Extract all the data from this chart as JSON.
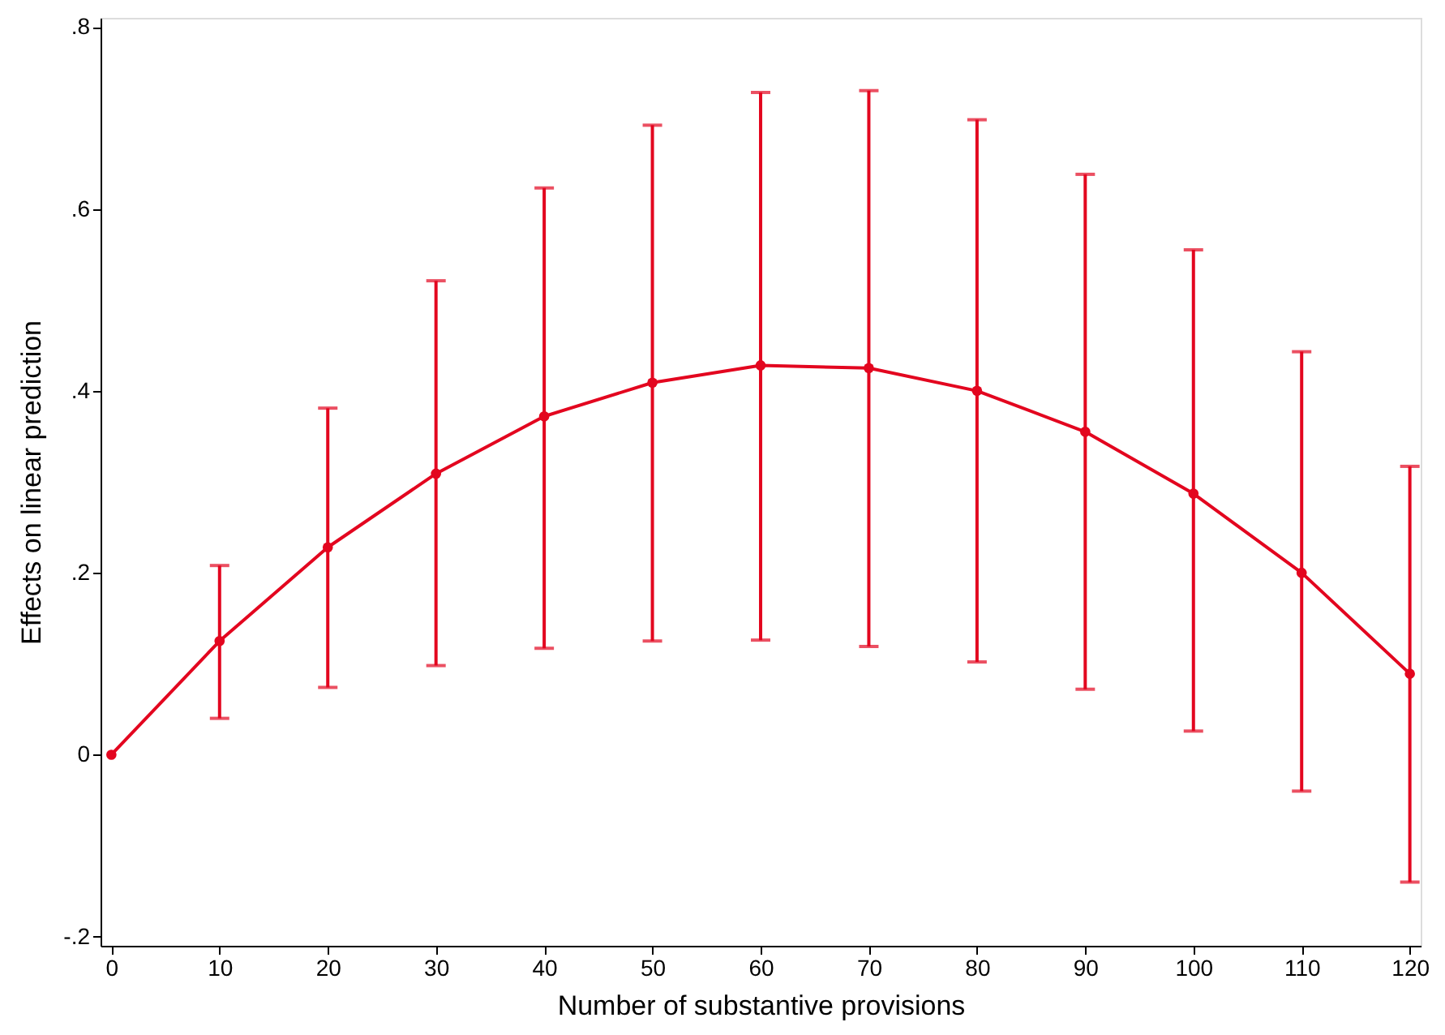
{
  "chart_data": {
    "type": "line",
    "xlabel": "Number of substantive provisions",
    "ylabel": "Effects on linear prediction",
    "x": [
      0,
      10,
      20,
      30,
      40,
      50,
      60,
      70,
      80,
      90,
      100,
      110,
      120
    ],
    "series": [
      {
        "color": "#e3061f",
        "values": [
          0,
          0.125,
          0.228,
          0.309,
          0.372,
          0.409,
          0.428,
          0.425,
          0.4,
          0.355,
          0.287,
          0.2,
          0.089
        ],
        "errors": [
          null,
          [
            0.04,
            0.208
          ],
          [
            0.074,
            0.381
          ],
          [
            0.098,
            0.521
          ],
          [
            0.117,
            0.623
          ],
          [
            0.125,
            0.692
          ],
          [
            0.126,
            0.728
          ],
          [
            0.119,
            0.73
          ],
          [
            0.102,
            0.698
          ],
          [
            0.072,
            0.638
          ],
          [
            0.026,
            0.555
          ],
          [
            -0.04,
            0.443
          ],
          [
            -0.14,
            0.317
          ]
        ]
      }
    ],
    "xlim": [
      -1,
      121
    ],
    "xticks": [
      0,
      10,
      20,
      30,
      40,
      50,
      60,
      70,
      80,
      90,
      100,
      110,
      120
    ],
    "ylim": [
      -0.21,
      0.81
    ],
    "yticks": [
      {
        "value": -0.2,
        "label": "-.2"
      },
      {
        "value": 0,
        "label": "0"
      },
      {
        "value": 0.2,
        "label": ".2"
      },
      {
        "value": 0.4,
        "label": ".4"
      },
      {
        "value": 0.6,
        "label": ".6"
      },
      {
        "value": 0.8,
        "label": ".8"
      }
    ],
    "marker": "circle",
    "line_style": "solid",
    "grid": false
  }
}
